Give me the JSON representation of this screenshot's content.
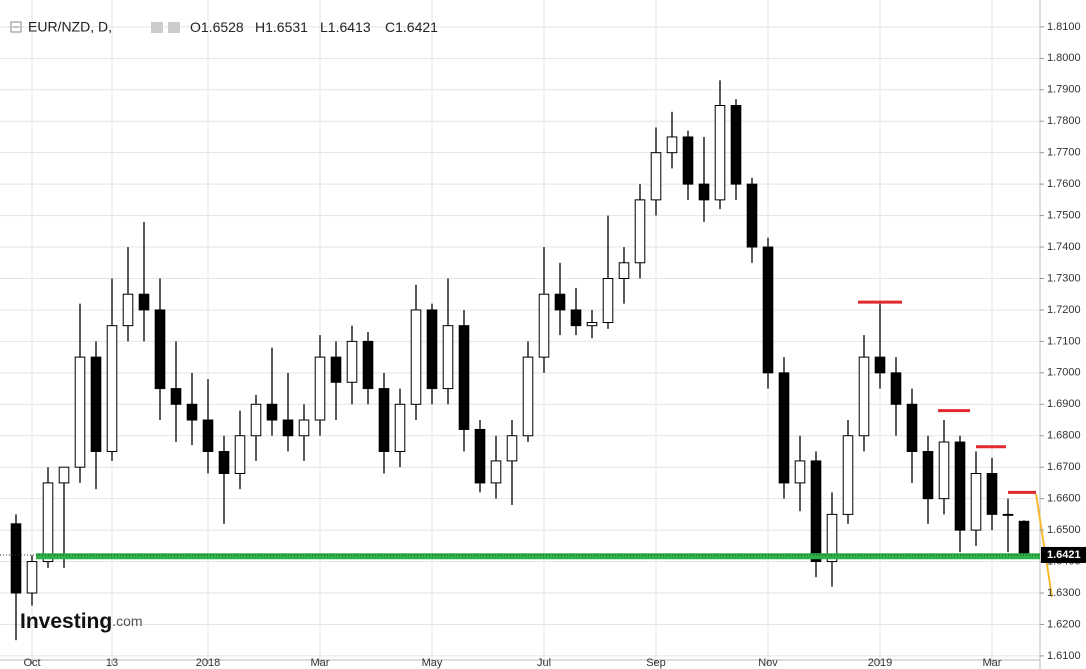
{
  "chart_data": {
    "type": "candlestick",
    "title": "EUR/NZD, D,",
    "ohlc_labels": [
      "O",
      "H",
      "L",
      "C"
    ],
    "logo": {
      "name": "Investing",
      "suffix": ".com"
    },
    "categories": [
      null,
      "Oct",
      null,
      null,
      null,
      null,
      "13",
      null,
      null,
      null,
      null,
      null,
      "2018",
      null,
      null,
      null,
      null,
      null,
      null,
      "Mar",
      null,
      null,
      null,
      null,
      null,
      null,
      "May",
      null,
      null,
      null,
      null,
      null,
      null,
      "Jul",
      null,
      null,
      null,
      null,
      null,
      null,
      "Sep",
      null,
      null,
      null,
      null,
      null,
      null,
      "Nov",
      null,
      null,
      null,
      null,
      null,
      null,
      "2019",
      null,
      null,
      null,
      null,
      null,
      null,
      "Mar",
      null,
      null
    ],
    "open": [
      1.652,
      1.63,
      1.64,
      1.665,
      1.67,
      1.705,
      1.675,
      1.715,
      1.725,
      1.72,
      1.695,
      1.69,
      1.685,
      1.675,
      1.668,
      1.68,
      1.69,
      1.685,
      1.68,
      1.685,
      1.705,
      1.697,
      1.71,
      1.695,
      1.675,
      1.69,
      1.72,
      1.695,
      1.715,
      1.682,
      1.665,
      1.672,
      1.68,
      1.705,
      1.725,
      1.72,
      1.715,
      1.716,
      1.73,
      1.735,
      1.755,
      1.77,
      1.775,
      1.76,
      1.755,
      1.785,
      1.76,
      1.74,
      1.7,
      1.665,
      1.672,
      1.64,
      1.655,
      1.68,
      1.705,
      1.7,
      1.69,
      1.675,
      1.66,
      1.678,
      1.65,
      1.668,
      1.655,
      1.6528
    ],
    "high": [
      1.655,
      1.642,
      1.67,
      1.67,
      1.722,
      1.71,
      1.73,
      1.74,
      1.748,
      1.73,
      1.71,
      1.7,
      1.698,
      1.68,
      1.688,
      1.693,
      1.708,
      1.7,
      1.69,
      1.712,
      1.71,
      1.715,
      1.713,
      1.7,
      1.695,
      1.728,
      1.722,
      1.73,
      1.72,
      1.685,
      1.68,
      1.685,
      1.71,
      1.74,
      1.735,
      1.727,
      1.72,
      1.75,
      1.74,
      1.76,
      1.778,
      1.783,
      1.777,
      1.775,
      1.793,
      1.787,
      1.762,
      1.743,
      1.705,
      1.68,
      1.675,
      1.662,
      1.685,
      1.712,
      1.722,
      1.705,
      1.695,
      1.68,
      1.685,
      1.68,
      1.675,
      1.673,
      1.66,
      1.6531
    ],
    "low": [
      1.615,
      1.626,
      1.638,
      1.638,
      1.665,
      1.663,
      1.672,
      1.71,
      1.71,
      1.685,
      1.678,
      1.677,
      1.668,
      1.652,
      1.663,
      1.672,
      1.68,
      1.675,
      1.672,
      1.68,
      1.685,
      1.69,
      1.69,
      1.668,
      1.67,
      1.685,
      1.69,
      1.69,
      1.675,
      1.662,
      1.66,
      1.658,
      1.678,
      1.7,
      1.712,
      1.712,
      1.711,
      1.714,
      1.722,
      1.73,
      1.75,
      1.765,
      1.755,
      1.748,
      1.752,
      1.755,
      1.735,
      1.695,
      1.66,
      1.656,
      1.635,
      1.632,
      1.652,
      1.675,
      1.695,
      1.68,
      1.665,
      1.652,
      1.655,
      1.643,
      1.645,
      1.65,
      1.643,
      1.6413
    ],
    "close": [
      1.63,
      1.64,
      1.665,
      1.67,
      1.705,
      1.675,
      1.715,
      1.725,
      1.72,
      1.695,
      1.69,
      1.685,
      1.675,
      1.668,
      1.68,
      1.69,
      1.685,
      1.68,
      1.685,
      1.705,
      1.697,
      1.71,
      1.695,
      1.675,
      1.69,
      1.72,
      1.695,
      1.715,
      1.682,
      1.665,
      1.672,
      1.68,
      1.705,
      1.725,
      1.72,
      1.715,
      1.716,
      1.73,
      1.735,
      1.755,
      1.77,
      1.775,
      1.76,
      1.755,
      1.785,
      1.76,
      1.74,
      1.7,
      1.665,
      1.672,
      1.64,
      1.655,
      1.68,
      1.705,
      1.7,
      1.69,
      1.675,
      1.66,
      1.678,
      1.65,
      1.668,
      1.655,
      1.655,
      1.6421
    ],
    "ylim": [
      1.6087,
      1.816
    ],
    "yticks": [
      {
        "value": 1.61,
        "label": "1.6100"
      },
      {
        "value": 1.62,
        "label": "1.6200"
      },
      {
        "value": 1.63,
        "label": "1.6300"
      },
      {
        "value": 1.64,
        "label": "1.6400"
      },
      {
        "value": 1.65,
        "label": "1.6500"
      },
      {
        "value": 1.66,
        "label": "1.6600"
      },
      {
        "value": 1.67,
        "label": "1.6700"
      },
      {
        "value": 1.68,
        "label": "1.6800"
      },
      {
        "value": 1.69,
        "label": "1.6900"
      },
      {
        "value": 1.7,
        "label": "1.7000"
      },
      {
        "value": 1.71,
        "label": "1.7100"
      },
      {
        "value": 1.72,
        "label": "1.7200"
      },
      {
        "value": 1.73,
        "label": "1.7300"
      },
      {
        "value": 1.74,
        "label": "1.7400"
      },
      {
        "value": 1.75,
        "label": "1.7500"
      },
      {
        "value": 1.76,
        "label": "1.7600"
      },
      {
        "value": 1.77,
        "label": "1.7700"
      },
      {
        "value": 1.78,
        "label": "1.7800"
      },
      {
        "value": 1.79,
        "label": "1.7900"
      },
      {
        "value": 1.8,
        "label": "1.8000"
      },
      {
        "value": 1.81,
        "label": "1.8100"
      }
    ],
    "grid": true,
    "support": 1.6417,
    "support_color": "#2db24a",
    "resistance": [
      1.7225,
      1.688,
      1.6765,
      1.662
    ],
    "resistance_color": "#e0282e"
  }
}
